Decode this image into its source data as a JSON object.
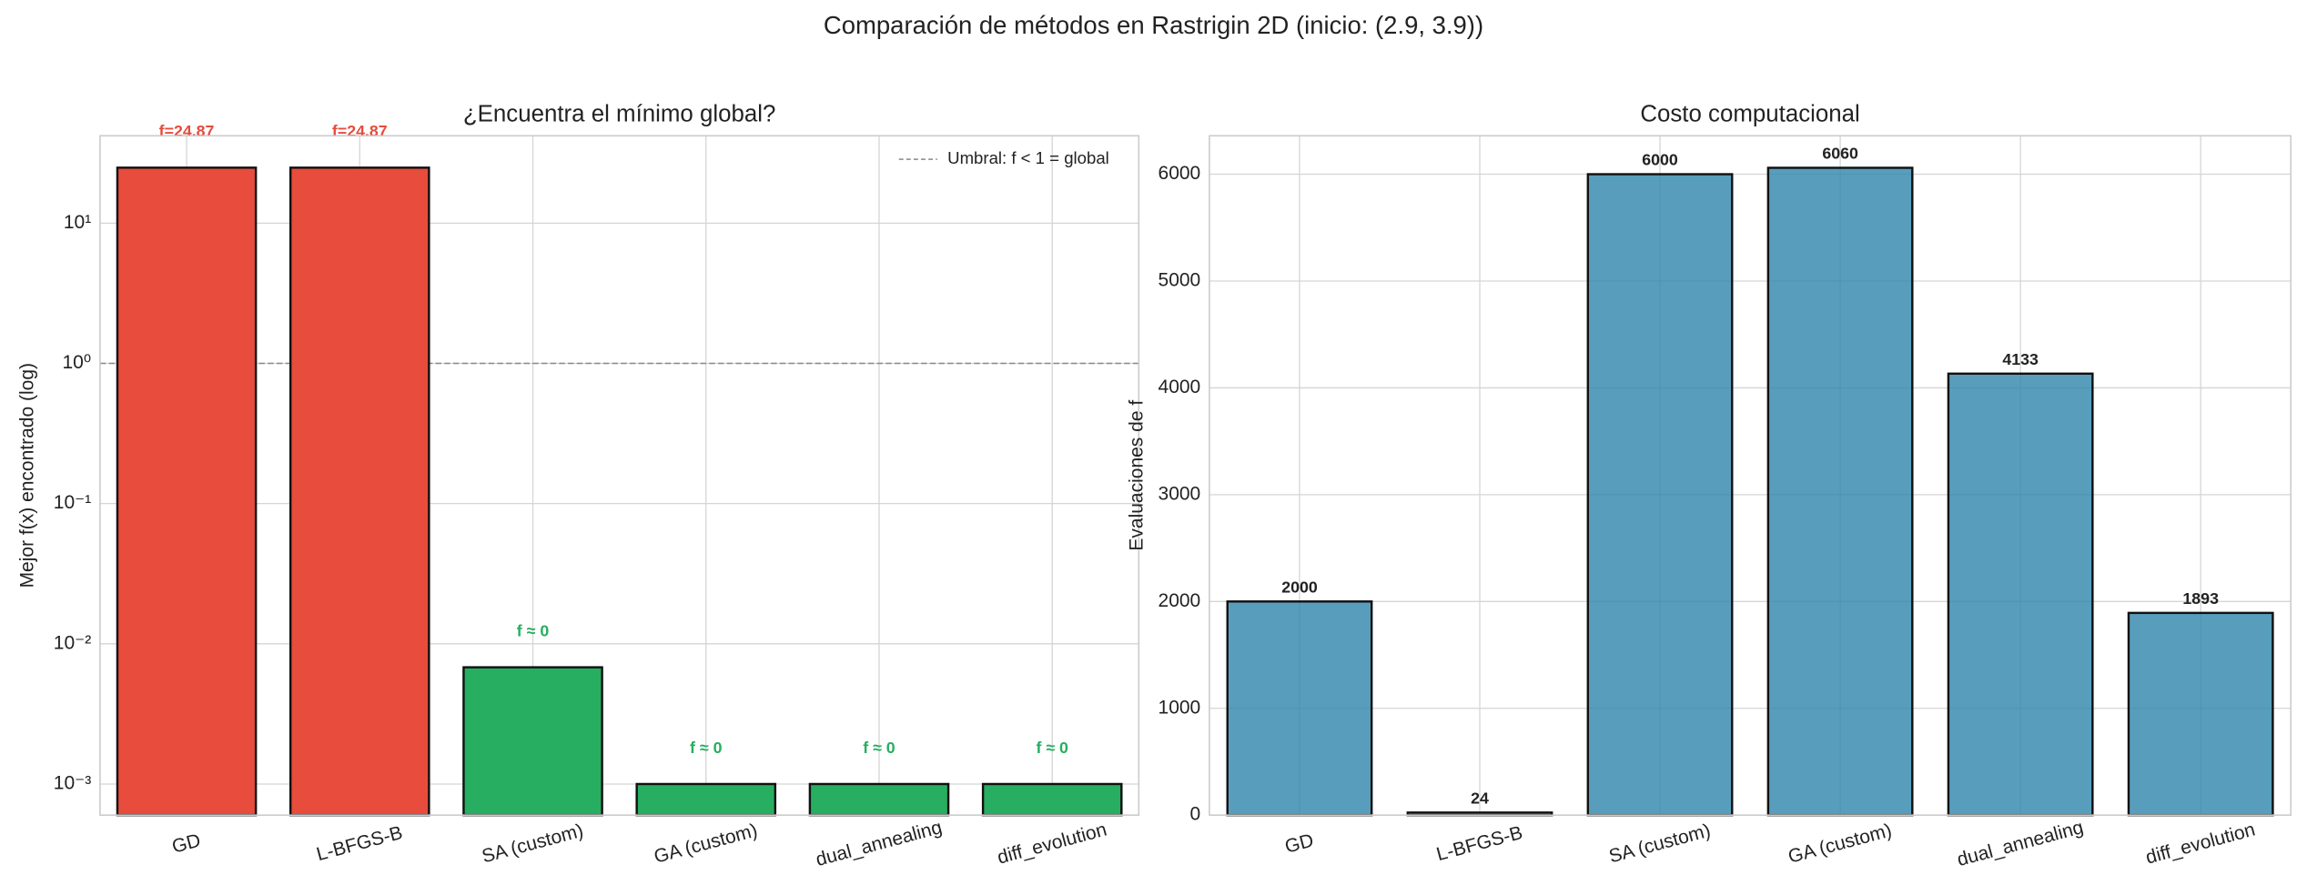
{
  "title": "Comparación de métodos en Rastrigin 2D (inicio: (2.9, 3.9))",
  "chart_data": [
    {
      "type": "bar",
      "title": "¿Encuentra el mínimo global?",
      "y_label": "Mejor f(x) encontrado (log)",
      "categories": [
        "GD",
        "L-BFGS-B",
        "SA (custom)",
        "GA (custom)",
        "dual_annealing",
        "diff_evolution"
      ],
      "values": [
        24.87,
        24.87,
        0.0068,
        0.001,
        0.001,
        0.001
      ],
      "value_labels": [
        "f=24.87",
        "f=24.87",
        "f ≈ 0",
        "f ≈ 0",
        "f ≈ 0",
        "f ≈ 0"
      ],
      "colors": [
        "#e74c3c",
        "#e74c3c",
        "#27ae60",
        "#27ae60",
        "#27ae60",
        "#27ae60"
      ],
      "log_scale": true,
      "ylim": [
        0.0006,
        42
      ],
      "yticks": [
        {
          "value": 0.001,
          "label": "10⁻³"
        },
        {
          "value": 0.01,
          "label": "10⁻²"
        },
        {
          "value": 0.1,
          "label": "10⁻¹"
        },
        {
          "value": 1,
          "label": "10⁰"
        },
        {
          "value": 10,
          "label": "10¹"
        }
      ],
      "threshold": {
        "value": 1,
        "label": "Umbral: f < 1 = global",
        "color": "#888888"
      },
      "legend": "upper right",
      "grid": true
    },
    {
      "type": "bar",
      "title": "Costo computacional",
      "y_label": "Evaluaciones de f",
      "categories": [
        "GD",
        "L-BFGS-B",
        "SA (custom)",
        "GA (custom)",
        "dual_annealing",
        "diff_evolution"
      ],
      "values": [
        2000,
        24,
        6000,
        6060,
        4133,
        1893
      ],
      "color": "#2e86ab",
      "log_scale": false,
      "ylim": [
        0,
        6360
      ],
      "yticks": [
        0,
        1000,
        2000,
        3000,
        4000,
        5000,
        6000
      ],
      "grid": true
    }
  ]
}
